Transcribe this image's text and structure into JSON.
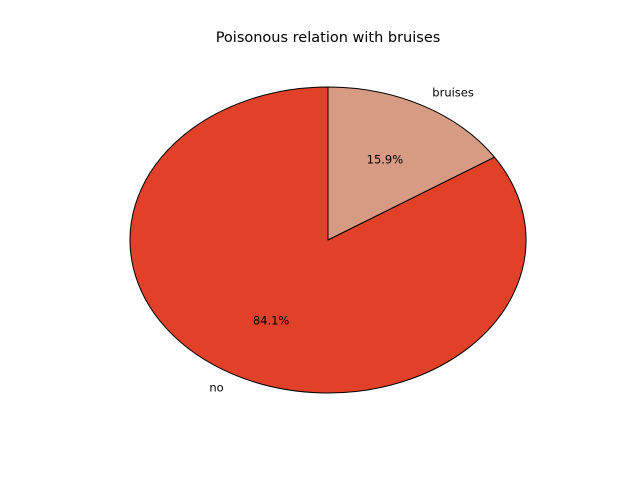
{
  "chart_data": {
    "type": "pie",
    "title": "Poisonous relation with bruises",
    "slices": [
      {
        "label": "bruises",
        "value": 15.9,
        "pct_label": "15.9%",
        "color": "#d79b84"
      },
      {
        "label": "no",
        "value": 84.1,
        "pct_label": "84.1%",
        "color": "#e24129"
      }
    ],
    "start_angle_deg": 90,
    "direction": "clockwise",
    "edge_color": "#000000",
    "legend": "none"
  }
}
